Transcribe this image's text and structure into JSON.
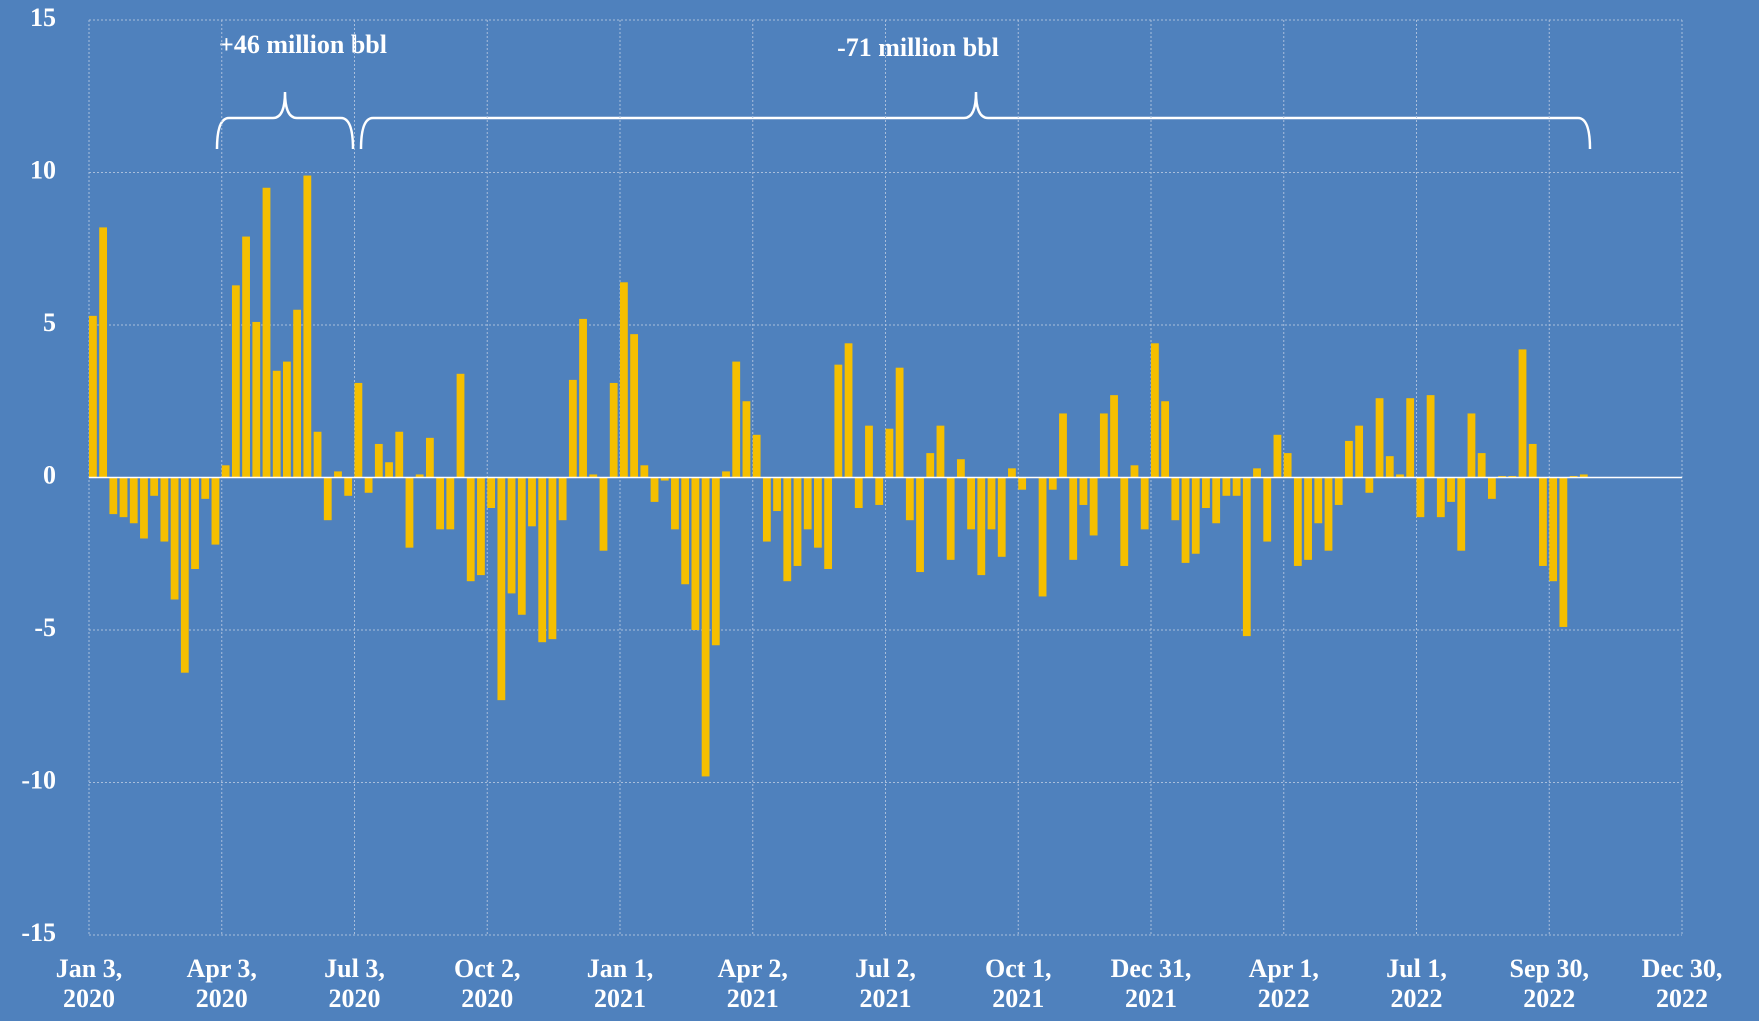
{
  "chart_data": {
    "type": "bar",
    "color": "#f5bf00",
    "grid": true,
    "annotations": [
      "+46 million bbl",
      "-71 million bbl"
    ],
    "ylim": [
      -15,
      15
    ],
    "yticks": [
      -15,
      -10,
      -5,
      0,
      5,
      10,
      15
    ],
    "xlim": [
      "2020-01-03",
      "2022-12-30"
    ],
    "xticks": [
      {
        "value": "2020-01-03",
        "label": "Jan 3, 2020"
      },
      {
        "value": "2020-04-03",
        "label": "Apr 3, 2020"
      },
      {
        "value": "2020-07-03",
        "label": "Jul 3, 2020"
      },
      {
        "value": "2020-10-02",
        "label": "Oct 2, 2020"
      },
      {
        "value": "2021-01-01",
        "label": "Jan 1, 2021"
      },
      {
        "value": "2021-04-02",
        "label": "Apr 2, 2021"
      },
      {
        "value": "2021-07-02",
        "label": "Jul 2, 2021"
      },
      {
        "value": "2021-10-01",
        "label": "Oct 1, 2021"
      },
      {
        "value": "2021-12-31",
        "label": "Dec 31, 2021"
      },
      {
        "value": "2022-04-01",
        "label": "Apr 1, 2022"
      },
      {
        "value": "2022-07-01",
        "label": "Jul 1, 2022"
      },
      {
        "value": "2022-09-30",
        "label": "Sep 30, 2022"
      },
      {
        "value": "2022-12-30",
        "label": "Dec 30, 2022"
      }
    ],
    "x": [
      "2020-01-03",
      "2020-01-10",
      "2020-01-17",
      "2020-01-24",
      "2020-01-31",
      "2020-02-07",
      "2020-02-14",
      "2020-02-21",
      "2020-02-28",
      "2020-03-06",
      "2020-03-13",
      "2020-03-20",
      "2020-03-27",
      "2020-04-03",
      "2020-04-10",
      "2020-04-17",
      "2020-04-24",
      "2020-05-01",
      "2020-05-08",
      "2020-05-15",
      "2020-05-22",
      "2020-05-29",
      "2020-06-05",
      "2020-06-12",
      "2020-06-19",
      "2020-06-26",
      "2020-07-03",
      "2020-07-10",
      "2020-07-17",
      "2020-07-24",
      "2020-07-31",
      "2020-08-07",
      "2020-08-14",
      "2020-08-21",
      "2020-08-28",
      "2020-09-04",
      "2020-09-11",
      "2020-09-18",
      "2020-09-25",
      "2020-10-02",
      "2020-10-09",
      "2020-10-16",
      "2020-10-23",
      "2020-10-30",
      "2020-11-06",
      "2020-11-13",
      "2020-11-20",
      "2020-11-27",
      "2020-12-04",
      "2020-12-11",
      "2020-12-18",
      "2020-12-25",
      "2021-01-01",
      "2021-01-08",
      "2021-01-15",
      "2021-01-22",
      "2021-01-29",
      "2021-02-05",
      "2021-02-12",
      "2021-02-19",
      "2021-02-26",
      "2021-03-05",
      "2021-03-12",
      "2021-03-19",
      "2021-03-26",
      "2021-04-02",
      "2021-04-09",
      "2021-04-16",
      "2021-04-23",
      "2021-04-30",
      "2021-05-07",
      "2021-05-14",
      "2021-05-21",
      "2021-05-28",
      "2021-06-04",
      "2021-06-11",
      "2021-06-18",
      "2021-06-25",
      "2021-07-02",
      "2021-07-09",
      "2021-07-16",
      "2021-07-23",
      "2021-07-30",
      "2021-08-06",
      "2021-08-13",
      "2021-08-20",
      "2021-08-27",
      "2021-09-03",
      "2021-09-10",
      "2021-09-17",
      "2021-09-24",
      "2021-10-01",
      "2021-10-08",
      "2021-10-15",
      "2021-10-22",
      "2021-10-29",
      "2021-11-05",
      "2021-11-12",
      "2021-11-19",
      "2021-11-26",
      "2021-12-03",
      "2021-12-10",
      "2021-12-17",
      "2021-12-24",
      "2021-12-31",
      "2022-01-07",
      "2022-01-14",
      "2022-01-21",
      "2022-01-28",
      "2022-02-04",
      "2022-02-11",
      "2022-02-18",
      "2022-02-25",
      "2022-03-04",
      "2022-03-11",
      "2022-03-18",
      "2022-03-25",
      "2022-04-01",
      "2022-04-08",
      "2022-04-15",
      "2022-04-22",
      "2022-04-29",
      "2022-05-06",
      "2022-05-13",
      "2022-05-20",
      "2022-05-27",
      "2022-06-03",
      "2022-06-10",
      "2022-06-17",
      "2022-06-24",
      "2022-07-01",
      "2022-07-08",
      "2022-07-15",
      "2022-07-22",
      "2022-07-29",
      "2022-08-05",
      "2022-08-12",
      "2022-08-19",
      "2022-08-26",
      "2022-09-02",
      "2022-09-09",
      "2022-09-16",
      "2022-09-23",
      "2022-09-30",
      "2022-10-07",
      "2022-10-14",
      "2022-10-21"
    ],
    "values": [
      5.3,
      8.2,
      -1.2,
      -1.3,
      -1.5,
      -2.0,
      -0.6,
      -2.1,
      -4.0,
      -6.4,
      -3.0,
      -0.7,
      -2.2,
      0.4,
      6.3,
      7.9,
      5.1,
      9.5,
      3.5,
      3.8,
      5.5,
      9.9,
      1.5,
      -1.4,
      0.2,
      -0.6,
      3.1,
      -0.5,
      1.1,
      0.5,
      1.5,
      -2.3,
      0.1,
      1.3,
      -1.7,
      -1.7,
      3.4,
      -3.4,
      -3.2,
      -1.0,
      -7.3,
      -3.8,
      -4.5,
      -1.6,
      -5.4,
      -5.3,
      -1.4,
      3.2,
      5.2,
      0.1,
      -2.4,
      3.1,
      6.4,
      4.7,
      0.4,
      -0.8,
      -0.1,
      -1.7,
      -3.5,
      -5.0,
      -9.8,
      -5.5,
      0.2,
      3.8,
      2.5,
      1.4,
      -2.1,
      -1.1,
      -3.4,
      -2.9,
      -1.7,
      -2.3,
      -3.0,
      3.7,
      4.4,
      -1.0,
      1.7,
      -0.9,
      1.6,
      3.6,
      -1.4,
      -3.1,
      0.8,
      1.7,
      -2.7,
      0.6,
      -1.7,
      -3.2,
      -1.7,
      -2.6,
      0.3,
      -0.4,
      0.0,
      -3.9,
      -0.4,
      2.1,
      -2.7,
      -0.9,
      -1.9,
      2.1,
      2.7,
      -2.9,
      0.4,
      -1.7,
      4.4,
      2.5,
      -1.4,
      -2.8,
      -2.5,
      -1.0,
      -1.5,
      -0.6,
      -0.6,
      -5.2,
      0.3,
      -2.1,
      1.4,
      0.8,
      -2.9,
      -2.7,
      -1.5,
      -2.4,
      -0.9,
      1.2,
      1.7,
      -0.5,
      2.6,
      0.7,
      0.1,
      2.6,
      -1.3,
      2.7,
      -1.3,
      -0.8,
      -2.4,
      2.1,
      0.8,
      -0.7,
      0.05,
      0.05,
      4.2,
      1.1,
      -2.9,
      -3.4,
      -4.9,
      0.05,
      0.1
    ]
  }
}
